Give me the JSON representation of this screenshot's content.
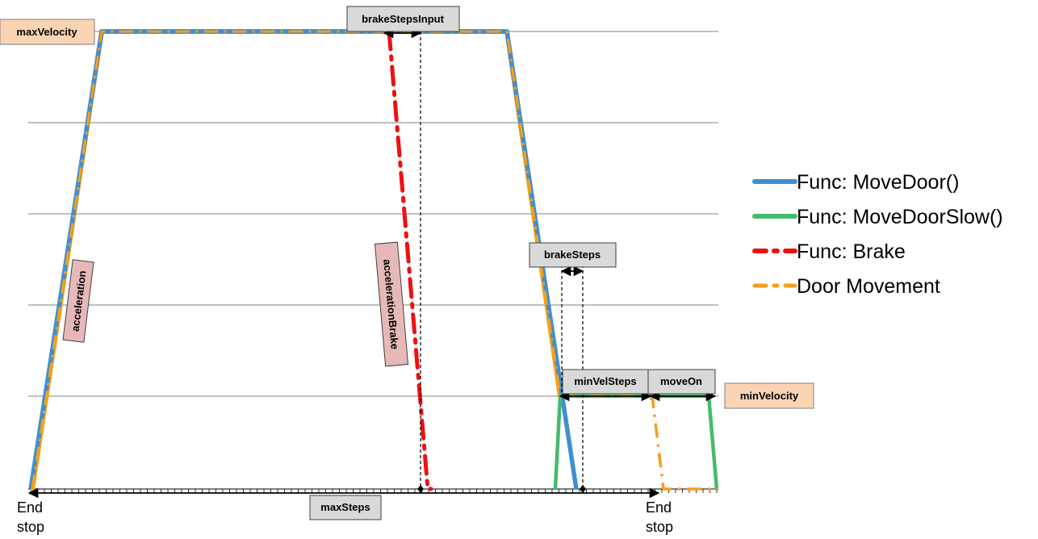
{
  "labels": {
    "max_velocity": "maxVelocity",
    "min_velocity": "minVelocity",
    "brake_steps_input": "brakeStepsInput",
    "brake_steps": "brakeSteps",
    "min_vel_steps": "minVelSteps",
    "move_on": "moveOn",
    "max_steps": "maxSteps",
    "acceleration": "acceleration",
    "acceleration_brake": "accelerationBrake",
    "end_stop_left_line1": "End",
    "end_stop_left_line2": "stop",
    "end_stop_right_line1": "End",
    "end_stop_right_line2": "stop"
  },
  "legend": [
    {
      "label": "Func: MoveDoor()",
      "color": "#3f8fd1",
      "style": "solid"
    },
    {
      "label": "Func: MoveDoorSlow()",
      "color": "#44bb6c",
      "style": "solid"
    },
    {
      "label": "Func: Brake",
      "color": "#ee1111",
      "style": "dash-dot"
    },
    {
      "label": "Door Movement",
      "color": "#f5a01a",
      "style": "dash-dot"
    }
  ],
  "colors": {
    "move_door": "#3f8fd1",
    "move_door_slow": "#44bb6c",
    "brake": "#ee1111",
    "door_movement": "#f5a01a",
    "label_orange_bg": "#fbd4b4",
    "label_grey_bg": "#d9d9d9",
    "label_pink_bg": "#e6b9b8",
    "gridline": "#808080"
  }
}
